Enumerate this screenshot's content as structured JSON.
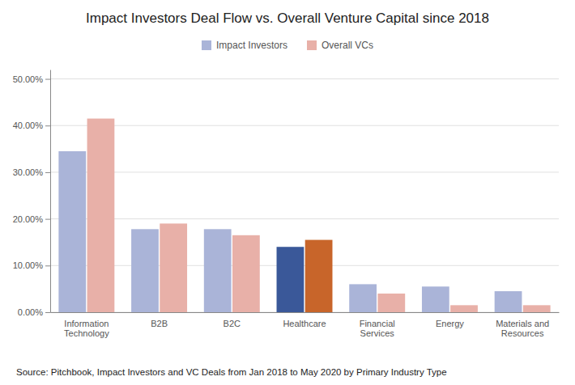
{
  "chart_data": {
    "type": "bar",
    "title": "Impact Investors Deal Flow vs. Overall Venture Capital since 2018",
    "categories": [
      "Information Technology",
      "B2B",
      "B2C",
      "Healthcare",
      "Financial Services",
      "Energy",
      "Materials and Resources"
    ],
    "series": [
      {
        "name": "Impact Investors",
        "color": "#aab4d8",
        "colors": [
          "#aab4d8",
          "#aab4d8",
          "#aab4d8",
          "#3a5899",
          "#aab4d8",
          "#aab4d8",
          "#aab4d8"
        ],
        "values": [
          0.345,
          0.178,
          0.178,
          0.14,
          0.06,
          0.055,
          0.045
        ]
      },
      {
        "name": "Overall VCs",
        "color": "#e8b0a8",
        "colors": [
          "#e8b0a8",
          "#e8b0a8",
          "#e8b0a8",
          "#c8652a",
          "#e8b0a8",
          "#e8b0a8",
          "#e8b0a8"
        ],
        "values": [
          0.415,
          0.19,
          0.165,
          0.155,
          0.04,
          0.015,
          0.015
        ]
      }
    ],
    "ylim": [
      0,
      0.52
    ],
    "yticks": [
      {
        "value": 0.0,
        "label": "0.00%"
      },
      {
        "value": 0.1,
        "label": "10.00%"
      },
      {
        "value": 0.2,
        "label": "20.00%"
      },
      {
        "value": 0.3,
        "label": "30.00%"
      },
      {
        "value": 0.4,
        "label": "40.00%"
      },
      {
        "value": 0.5,
        "label": "50.00%"
      }
    ],
    "grid": true,
    "legend": "top",
    "annotations": [
      "Source: Pitchbook, Impact Investors and VC Deals from Jan 2018 to May 2020  by Primary Industry Type"
    ]
  }
}
